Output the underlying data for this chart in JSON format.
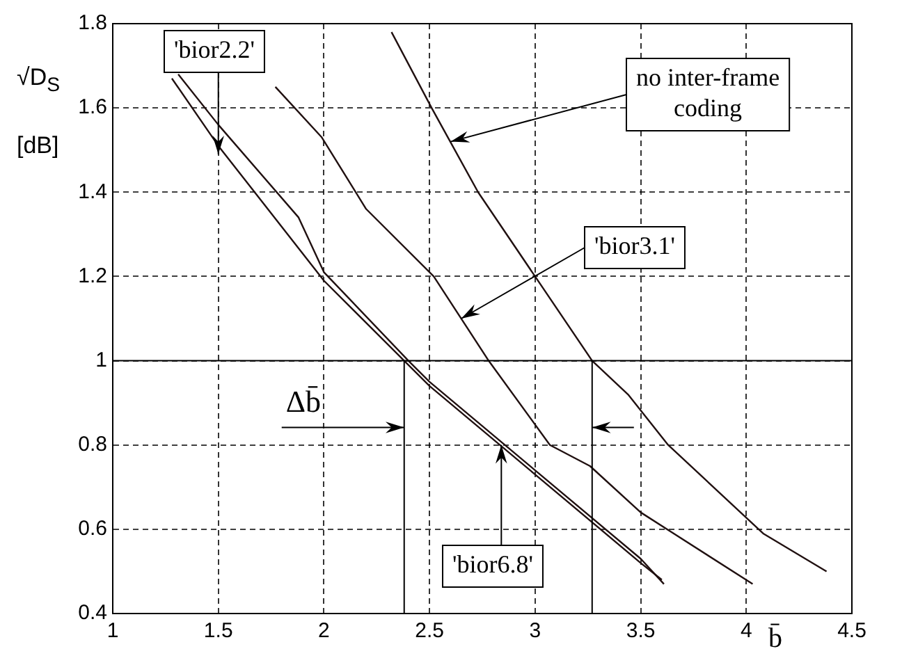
{
  "chart_data": {
    "type": "line",
    "xlabel": "b̄",
    "ylabel": "√D$_{S}$ [dB]",
    "xlim": [
      1,
      4.5
    ],
    "xticks": [
      1,
      1.5,
      2,
      2.5,
      3,
      3.5,
      4,
      4.5
    ],
    "ylim": [
      0.4,
      1.8
    ],
    "yticks": [
      0.4,
      0.6,
      0.8,
      1,
      1.2,
      1.4,
      1.6,
      1.8
    ],
    "grid": true,
    "legend": false,
    "marker": "none",
    "line_style": "solid",
    "series": [
      {
        "color": "#201010",
        "x": [
          1.28,
          1.5,
          2,
          2.38,
          2.5,
          3,
          3.5,
          3.6
        ],
        "values": [
          1.67,
          1.51,
          1.19,
          1.0,
          0.94,
          0.73,
          0.52,
          0.48
        ]
      },
      {
        "color": "#201010",
        "x": [
          1.31,
          1.5,
          1.88,
          2,
          2.4,
          2.5,
          3,
          3.5,
          3.61
        ],
        "values": [
          1.68,
          1.56,
          1.34,
          1.21,
          1.0,
          0.95,
          0.74,
          0.53,
          0.47
        ]
      },
      {
        "color": "#201010",
        "x": [
          1.77,
          1.99,
          2.2,
          2.52,
          2.78,
          3.07,
          3.26,
          3.5,
          4.03
        ],
        "values": [
          1.65,
          1.53,
          1.36,
          1.2,
          1.0,
          0.8,
          0.75,
          0.64,
          0.47
        ]
      },
      {
        "color": "#201010",
        "x": [
          2.32,
          2.51,
          2.73,
          3.0,
          3.27,
          3.44,
          3.63,
          4.08,
          4.38
        ],
        "values": [
          1.78,
          1.6,
          1.4,
          1.2,
          1.0,
          0.92,
          0.8,
          0.59,
          0.5
        ]
      }
    ],
    "ref_lines": [
      {
        "axis": "y",
        "value": 1
      },
      {
        "axis": "x",
        "value": 2.38
      },
      {
        "axis": "x",
        "value": 3.27
      }
    ],
    "annotations": [
      {
        "text": "'bior6.8'",
        "x": 2.84,
        "y": 0.8
      },
      {
        "text": "'bior2.2'",
        "x": 1.5,
        "y": 1.49
      },
      {
        "text": "'bior3.1'",
        "x": 2.65,
        "y": 1.1
      },
      {
        "text": "no inter-frame coding",
        "x": 2.6,
        "y": 1.52
      },
      "Δb̄"
    ]
  }
}
